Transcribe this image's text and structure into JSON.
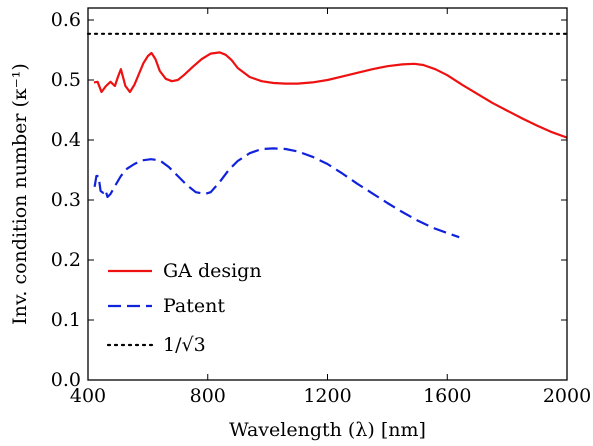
{
  "chart_data": {
    "type": "line",
    "title": "",
    "xlabel": "Wavelength (λ) [nm]",
    "ylabel": "Inv. condition number (κ⁻¹)",
    "xlim": [
      400,
      2000
    ],
    "ylim": [
      0.0,
      0.62
    ],
    "xticks": [
      400,
      800,
      1200,
      1600,
      2000
    ],
    "xtick_labels": [
      "400",
      "800",
      "1200",
      "1600",
      "2000"
    ],
    "yticks": [
      0.0,
      0.1,
      0.2,
      0.3,
      0.4,
      0.5,
      0.6
    ],
    "ytick_labels": [
      "0.0",
      "0.1",
      "0.2",
      "0.3",
      "0.4",
      "0.5",
      "0.6"
    ],
    "grid": false,
    "legend_position": "lower-left",
    "series": [
      {
        "name": "GA design",
        "style": "solid",
        "color": "#ee1111",
        "x": [
          420,
          432,
          445,
          460,
          475,
          490,
          500,
          510,
          525,
          540,
          555,
          570,
          585,
          600,
          612,
          625,
          640,
          660,
          680,
          700,
          720,
          750,
          780,
          810,
          840,
          860,
          880,
          900,
          940,
          980,
          1020,
          1060,
          1100,
          1150,
          1200,
          1250,
          1300,
          1350,
          1400,
          1450,
          1490,
          1520,
          1560,
          1600,
          1650,
          1700,
          1750,
          1800,
          1850,
          1900,
          1950,
          2000
        ],
        "y": [
          0.496,
          0.497,
          0.48,
          0.49,
          0.497,
          0.49,
          0.505,
          0.518,
          0.49,
          0.48,
          0.492,
          0.51,
          0.528,
          0.54,
          0.545,
          0.535,
          0.515,
          0.502,
          0.498,
          0.5,
          0.508,
          0.522,
          0.535,
          0.544,
          0.546,
          0.542,
          0.533,
          0.52,
          0.505,
          0.498,
          0.495,
          0.494,
          0.494,
          0.496,
          0.5,
          0.506,
          0.512,
          0.518,
          0.523,
          0.526,
          0.527,
          0.525,
          0.518,
          0.508,
          0.492,
          0.477,
          0.462,
          0.449,
          0.436,
          0.424,
          0.413,
          0.404
        ]
      },
      {
        "name": "Patent",
        "style": "dashed",
        "color": "#1122dd",
        "x": [
          422,
          428,
          435,
          442,
          450,
          458,
          465,
          475,
          490,
          510,
          530,
          555,
          580,
          610,
          640,
          670,
          700,
          730,
          760,
          790,
          810,
          840,
          870,
          900,
          940,
          980,
          1020,
          1060,
          1100,
          1150,
          1200,
          1250,
          1300,
          1350,
          1400,
          1450,
          1500,
          1550,
          1600,
          1640
        ],
        "y": [
          0.322,
          0.34,
          0.34,
          0.315,
          0.312,
          0.317,
          0.305,
          0.31,
          0.323,
          0.34,
          0.352,
          0.36,
          0.366,
          0.368,
          0.366,
          0.355,
          0.34,
          0.325,
          0.313,
          0.31,
          0.313,
          0.33,
          0.35,
          0.365,
          0.378,
          0.385,
          0.386,
          0.385,
          0.381,
          0.372,
          0.36,
          0.344,
          0.327,
          0.311,
          0.295,
          0.28,
          0.266,
          0.254,
          0.245,
          0.238
        ]
      },
      {
        "name": "1/√3",
        "style": "dotted",
        "color": "#000000",
        "x": [
          400,
          2000
        ],
        "y": [
          0.577,
          0.577
        ]
      }
    ]
  }
}
